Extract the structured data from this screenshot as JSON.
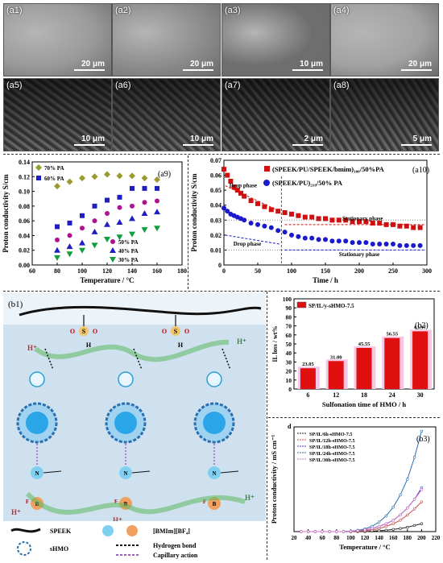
{
  "sem_panels": [
    {
      "label": "(a1)",
      "scale": "20 μm",
      "tone": "#9a9a9a"
    },
    {
      "label": "(a2)",
      "scale": "20 μm",
      "tone": "#8d8d8d"
    },
    {
      "label": "(a3)",
      "scale": "10 μm",
      "tone": "#6e6e6e"
    },
    {
      "label": "(a4)",
      "scale": "20 μm",
      "tone": "#a2a2a2"
    },
    {
      "label": "(a5)",
      "scale": "10 μm",
      "tone": "#7a7a7a"
    },
    {
      "label": "(a6)",
      "scale": "10 μm",
      "tone": "#868686"
    },
    {
      "label": "(a7)",
      "scale": "2 μm",
      "tone": "#6a6a6a"
    },
    {
      "label": "(a8)",
      "scale": "5 μm",
      "tone": "#8a8a8a"
    }
  ],
  "colors": {
    "olive": "#9a9a2e",
    "blue": "#1f1fbf",
    "magenta": "#b0128f",
    "green": "#0f9f3f",
    "red": "#d01010",
    "navy": "#1a1acc"
  },
  "chart_data": [
    {
      "id": "a9",
      "type": "scatter",
      "panel_label": "(a9)",
      "xlabel": "Temperature / °C",
      "ylabel": "Proton conductivity S/cm",
      "xlim": [
        60,
        180
      ],
      "ylim": [
        0,
        0.14
      ],
      "xticks": [
        "60",
        "80",
        "100",
        "120",
        "140",
        "160",
        "180"
      ],
      "yticks": [
        "0.00",
        "0.02",
        "0.04",
        "0.06",
        "0.08",
        "0.10",
        "0.12",
        "0.14"
      ],
      "series": [
        {
          "name": "70% PA",
          "marker": "diamond",
          "color": "#9a9a2e",
          "x": [
            80,
            90,
            100,
            110,
            120,
            130,
            140,
            150,
            160
          ],
          "y": [
            0.107,
            0.113,
            0.118,
            0.12,
            0.123,
            0.121,
            0.121,
            0.118,
            0.116
          ]
        },
        {
          "name": "60% PA",
          "marker": "square",
          "color": "#1f1fbf",
          "x": [
            80,
            90,
            100,
            110,
            120,
            130,
            140,
            150,
            160
          ],
          "y": [
            0.052,
            0.057,
            0.067,
            0.08,
            0.088,
            0.092,
            0.104,
            0.104,
            0.104
          ]
        },
        {
          "name": "50% PA",
          "marker": "circle",
          "color": "#b0128f",
          "x": [
            80,
            90,
            100,
            110,
            120,
            130,
            140,
            150,
            160
          ],
          "y": [
            0.034,
            0.04,
            0.05,
            0.06,
            0.07,
            0.078,
            0.08,
            0.085,
            0.087
          ]
        },
        {
          "name": "40% PA",
          "marker": "triangle",
          "color": "#1f1fbf",
          "x": [
            80,
            90,
            100,
            110,
            120,
            130,
            140,
            150,
            160
          ],
          "y": [
            0.02,
            0.025,
            0.03,
            0.045,
            0.055,
            0.058,
            0.063,
            0.07,
            0.072
          ]
        },
        {
          "name": "30% PA",
          "marker": "triangle-down",
          "color": "#0f9f3f",
          "x": [
            80,
            90,
            100,
            110,
            120,
            130,
            140,
            150,
            160
          ],
          "y": [
            0.01,
            0.015,
            0.02,
            0.027,
            0.035,
            0.038,
            0.042,
            0.048,
            0.05
          ]
        }
      ]
    },
    {
      "id": "a10",
      "type": "scatter",
      "panel_label": "(a10)",
      "xlabel": "Time / h",
      "ylabel": "Proton conductivity S/cm",
      "xlim": [
        0,
        300
      ],
      "ylim": [
        0,
        0.07
      ],
      "xticks": [
        "0",
        "50",
        "100",
        "150",
        "200",
        "250",
        "300"
      ],
      "yticks": [
        "0",
        "0.01",
        "0.02",
        "0.03",
        "0.04",
        "0.05",
        "0.06",
        "0.07"
      ],
      "annotations": [
        "Drop phase",
        "Stationary phase",
        "Drop phase",
        "Stationary phase"
      ],
      "series": [
        {
          "name": "(SPEEK/PU/SPEEK/bmim)₁₀₀/50%PA",
          "marker": "square",
          "color": "#d01010",
          "x": [
            0,
            5,
            10,
            15,
            20,
            25,
            30,
            40,
            50,
            60,
            70,
            80,
            90,
            100,
            110,
            120,
            130,
            140,
            150,
            160,
            170,
            180,
            190,
            200,
            210,
            220,
            230,
            240,
            250,
            260,
            270,
            280,
            290
          ],
          "y": [
            0.064,
            0.06,
            0.056,
            0.052,
            0.05,
            0.048,
            0.046,
            0.043,
            0.041,
            0.039,
            0.037,
            0.036,
            0.035,
            0.034,
            0.033,
            0.032,
            0.032,
            0.031,
            0.031,
            0.03,
            0.03,
            0.03,
            0.029,
            0.029,
            0.029,
            0.028,
            0.028,
            0.027,
            0.027,
            0.026,
            0.026,
            0.025,
            0.025
          ]
        },
        {
          "name": "(SPEEK/PU)₂₁₀/50% PA",
          "marker": "circle",
          "color": "#1a1acc",
          "x": [
            0,
            5,
            10,
            15,
            20,
            25,
            30,
            40,
            50,
            60,
            70,
            80,
            90,
            100,
            110,
            120,
            130,
            140,
            150,
            160,
            170,
            180,
            190,
            200,
            210,
            220,
            230,
            240,
            250,
            260,
            270,
            280,
            290
          ],
          "y": [
            0.038,
            0.036,
            0.034,
            0.033,
            0.032,
            0.031,
            0.03,
            0.028,
            0.027,
            0.026,
            0.025,
            0.023,
            0.022,
            0.02,
            0.019,
            0.018,
            0.018,
            0.017,
            0.017,
            0.016,
            0.016,
            0.016,
            0.015,
            0.015,
            0.015,
            0.014,
            0.014,
            0.014,
            0.014,
            0.013,
            0.013,
            0.013,
            0.013
          ]
        }
      ]
    },
    {
      "id": "b2",
      "type": "bar",
      "panel_label": "(b2)",
      "xlabel": "Sulfonation time of HMO / h",
      "ylabel": "IL loss / wt%",
      "categories": [
        "6",
        "12",
        "18",
        "24",
        "30"
      ],
      "values": [
        23.05,
        31.0,
        45.55,
        56.55,
        63.97
      ],
      "value_labels": [
        "23.05",
        "31.00",
        "45.55",
        "56.55",
        "63.97"
      ],
      "ylim": [
        0,
        100
      ],
      "yticks": [
        "0",
        "10",
        "20",
        "30",
        "40",
        "50",
        "60",
        "70",
        "80",
        "90",
        "100"
      ],
      "legend": "SP/IL/y-sHMO-7.5"
    },
    {
      "id": "b3",
      "type": "line",
      "panel_label": "(b3)",
      "xlabel": "Temperature / °C",
      "ylabel": "Proton conductivity / mS cm⁻¹",
      "xlim": [
        20,
        220
      ],
      "ylim": [
        0,
        1.2
      ],
      "xticks": [
        "20",
        "40",
        "60",
        "80",
        "100",
        "120",
        "140",
        "160",
        "180",
        "200",
        "220"
      ],
      "corner_label": "d",
      "series": [
        {
          "name": "SP/IL/6h-sHMO-7.5",
          "color": "#222222",
          "x": [
            30,
            40,
            50,
            60,
            70,
            80,
            90,
            100,
            110,
            120,
            130,
            140,
            150,
            160,
            170,
            180,
            190,
            200
          ],
          "y": [
            0.0,
            0.0,
            0.0,
            0.0,
            0.0,
            0.0,
            0.0,
            0.0,
            0.0,
            0.0,
            0.005,
            0.01,
            0.015,
            0.025,
            0.035,
            0.05,
            0.07,
            0.09
          ]
        },
        {
          "name": "SP/IL/12h-sHMO-7.5",
          "color": "#c0504d",
          "x": [
            30,
            40,
            50,
            60,
            70,
            80,
            90,
            100,
            110,
            120,
            130,
            140,
            150,
            160,
            170,
            180,
            190,
            200
          ],
          "y": [
            0.0,
            0.0,
            0.0,
            0.0,
            0.0,
            0.0,
            0.0,
            0.0,
            0.005,
            0.01,
            0.02,
            0.035,
            0.06,
            0.09,
            0.13,
            0.19,
            0.26,
            0.34
          ]
        },
        {
          "name": "SP/IL/18h-sHMO-7.5",
          "color": "#3a3ad0",
          "x": [
            30,
            40,
            50,
            60,
            70,
            80,
            90,
            100,
            110,
            120,
            130,
            140,
            150,
            160,
            170,
            180,
            190,
            200
          ],
          "y": [
            0.0,
            0.0,
            0.0,
            0.0,
            0.0,
            0.0,
            0.0,
            0.005,
            0.01,
            0.02,
            0.035,
            0.06,
            0.09,
            0.13,
            0.19,
            0.27,
            0.37,
            0.5
          ]
        },
        {
          "name": "SP/IL/24h-sHMO-7.5",
          "color": "#2a6fb0",
          "x": [
            30,
            40,
            50,
            60,
            70,
            80,
            90,
            100,
            110,
            120,
            130,
            140,
            150,
            160,
            170,
            180,
            190,
            200
          ],
          "y": [
            0.0,
            0.0,
            0.0,
            0.0,
            0.0,
            0.0,
            0.0,
            0.005,
            0.015,
            0.03,
            0.06,
            0.11,
            0.18,
            0.28,
            0.42,
            0.6,
            0.85,
            1.15
          ]
        },
        {
          "name": "SP/IL/30h-sHMO-7.5",
          "color": "#d070c0",
          "x": [
            30,
            40,
            50,
            60,
            70,
            80,
            90,
            100,
            110,
            120,
            130,
            140,
            150,
            160,
            170,
            180,
            190,
            200
          ],
          "y": [
            0.0,
            0.0,
            0.0,
            0.0,
            0.0,
            0.0,
            0.0,
            0.005,
            0.01,
            0.02,
            0.035,
            0.06,
            0.09,
            0.13,
            0.19,
            0.27,
            0.37,
            0.48
          ]
        }
      ]
    }
  ],
  "schematic": {
    "panel_label": "(b1)",
    "h_plus": "H⁺",
    "s_letter": "S",
    "o_letter": "O",
    "h_letter": "H",
    "n_letter": "N",
    "b_letter": "B",
    "f_letter": "F",
    "legend": {
      "speek": "SPEEK",
      "bmim": "[BMIm][BF₄]",
      "shmo": "sHMO",
      "hbond": "Hydrogen bond",
      "capillary": "Capillary action"
    }
  }
}
